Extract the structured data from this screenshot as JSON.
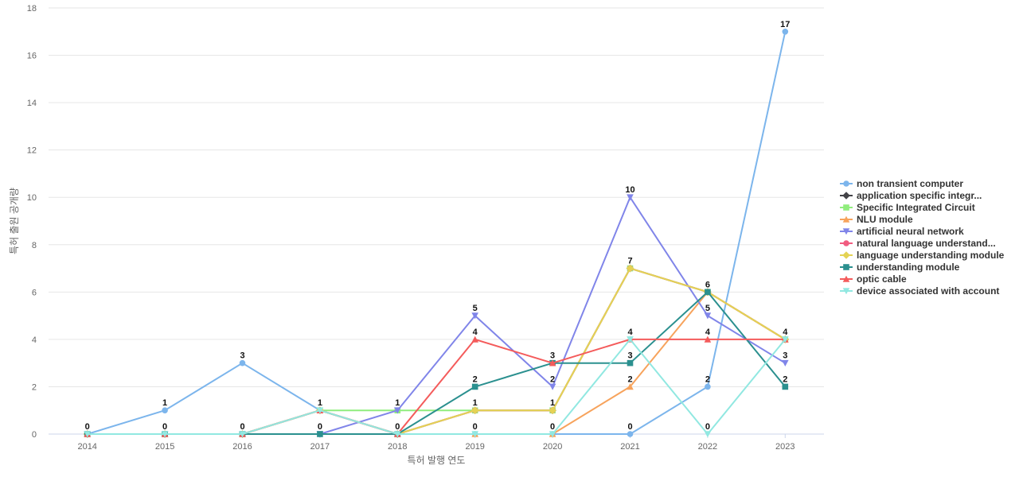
{
  "chart_data": {
    "type": "line",
    "xlabel": "특허 발행 연도",
    "ylabel": "특허 출원 공개량",
    "ylim": [
      0,
      18
    ],
    "yticks": [
      0,
      2,
      4,
      6,
      8,
      10,
      12,
      14,
      16,
      18
    ],
    "categories": [
      "2014",
      "2015",
      "2016",
      "2017",
      "2018",
      "2019",
      "2020",
      "2021",
      "2022",
      "2023"
    ],
    "grid": true,
    "legend_position": "right",
    "series": [
      {
        "name": "non transient computer",
        "color": "#7cb5ec",
        "marker": "circle",
        "values": [
          0,
          1,
          3,
          1,
          0,
          0,
          0,
          0,
          2,
          17
        ]
      },
      {
        "name": "application specific integr...",
        "color": "#434348",
        "marker": "diamond",
        "values": [
          0,
          0,
          0,
          1,
          0,
          1,
          1,
          7,
          6,
          4
        ]
      },
      {
        "name": "Specific Integrated Circuit",
        "color": "#90ed7d",
        "marker": "square",
        "values": [
          0,
          0,
          0,
          1,
          1,
          1,
          1,
          7,
          6,
          4
        ]
      },
      {
        "name": "NLU module",
        "color": "#f7a35c",
        "marker": "triangle",
        "values": [
          0,
          0,
          0,
          1,
          0,
          0,
          0,
          2,
          6,
          4
        ]
      },
      {
        "name": "artificial neural network",
        "color": "#8085e9",
        "marker": "triangle-down",
        "values": [
          0,
          0,
          0,
          0,
          1,
          5,
          2,
          10,
          5,
          3
        ]
      },
      {
        "name": "natural language understand...",
        "color": "#f15c80",
        "marker": "circle",
        "values": [
          0,
          0,
          0,
          1,
          0,
          1,
          1,
          7,
          6,
          4
        ]
      },
      {
        "name": "language understanding module",
        "color": "#e4d354",
        "marker": "diamond",
        "values": [
          0,
          0,
          0,
          1,
          0,
          1,
          1,
          7,
          6,
          4
        ]
      },
      {
        "name": "understanding module",
        "color": "#2b908f",
        "marker": "square",
        "values": [
          0,
          0,
          0,
          0,
          0,
          2,
          3,
          3,
          6,
          2
        ]
      },
      {
        "name": "optic cable",
        "color": "#f45b5b",
        "marker": "triangle",
        "values": [
          0,
          0,
          0,
          1,
          0,
          4,
          3,
          4,
          4,
          4
        ]
      },
      {
        "name": "device associated with account",
        "color": "#91e8e1",
        "marker": "triangle-down",
        "values": [
          0,
          0,
          0,
          1,
          0,
          0,
          0,
          4,
          0,
          4
        ]
      }
    ],
    "data_labels": [
      {
        "x": "2014",
        "y": 0,
        "text": "0"
      },
      {
        "x": "2015",
        "y": 1,
        "text": "1"
      },
      {
        "x": "2015",
        "y": 0,
        "text": "0"
      },
      {
        "x": "2016",
        "y": 3,
        "text": "3"
      },
      {
        "x": "2016",
        "y": 0,
        "text": "0"
      },
      {
        "x": "2017",
        "y": 1,
        "text": "1"
      },
      {
        "x": "2017",
        "y": 0,
        "text": "0"
      },
      {
        "x": "2018",
        "y": 1,
        "text": "1"
      },
      {
        "x": "2018",
        "y": 0,
        "text": "0"
      },
      {
        "x": "2019",
        "y": 5,
        "text": "5"
      },
      {
        "x": "2019",
        "y": 4,
        "text": "4"
      },
      {
        "x": "2019",
        "y": 2,
        "text": "2"
      },
      {
        "x": "2019",
        "y": 1,
        "text": "1"
      },
      {
        "x": "2019",
        "y": 0,
        "text": "0"
      },
      {
        "x": "2020",
        "y": 3,
        "text": "3"
      },
      {
        "x": "2020",
        "y": 2,
        "text": "2"
      },
      {
        "x": "2020",
        "y": 1,
        "text": "1"
      },
      {
        "x": "2020",
        "y": 0,
        "text": "0"
      },
      {
        "x": "2021",
        "y": 10,
        "text": "10"
      },
      {
        "x": "2021",
        "y": 7,
        "text": "7"
      },
      {
        "x": "2021",
        "y": 4,
        "text": "4"
      },
      {
        "x": "2021",
        "y": 3,
        "text": "3"
      },
      {
        "x": "2021",
        "y": 2,
        "text": "2"
      },
      {
        "x": "2021",
        "y": 0,
        "text": "0"
      },
      {
        "x": "2022",
        "y": 6,
        "text": "6"
      },
      {
        "x": "2022",
        "y": 5,
        "text": "5"
      },
      {
        "x": "2022",
        "y": 4,
        "text": "4"
      },
      {
        "x": "2022",
        "y": 2,
        "text": "2"
      },
      {
        "x": "2022",
        "y": 0,
        "text": "0"
      },
      {
        "x": "2023",
        "y": 17,
        "text": "17"
      },
      {
        "x": "2023",
        "y": 4,
        "text": "4"
      },
      {
        "x": "2023",
        "y": 3,
        "text": "3"
      },
      {
        "x": "2023",
        "y": 2,
        "text": "2"
      }
    ]
  }
}
